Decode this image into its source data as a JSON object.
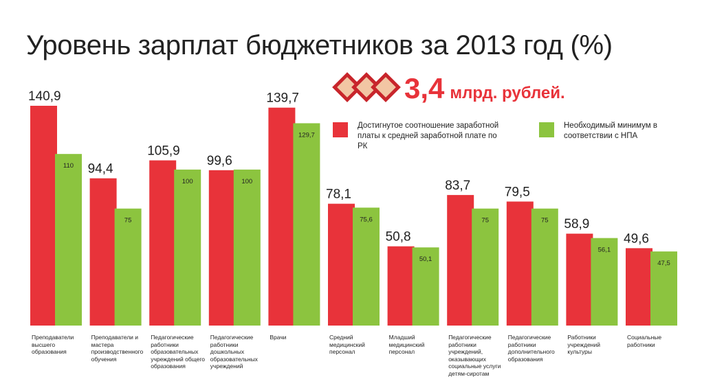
{
  "title": "Уровень зарплат бюджетников за 2013 год (%)",
  "highlight": {
    "amount": "3,4",
    "unit": "млрд. рублей."
  },
  "legend": [
    {
      "label": "Достигнутое соотношение заработной платы к средней заработной плате по РК",
      "color": "#e8333a"
    },
    {
      "label": "Необходимый минимум в соответствии с НПА",
      "color": "#8cc43f"
    }
  ],
  "colors": {
    "red": "#e8333a",
    "green": "#8cc43f",
    "logo_fill": "#f2c6a4",
    "logo_stroke": "#c8252b"
  },
  "chart_data": {
    "type": "bar",
    "title": "Уровень зарплат бюджетников за 2013 год (%)",
    "categories": [
      "Преподаватели высшего образования",
      "Преподаватели и мастера производственного обучения",
      "Педагогические работники образовательных учреждений общего образования",
      "Педагогические работники дошкольных образовательных учреждений",
      "Врачи",
      "Средний медицинский персонал",
      "Младший медицинский персонал",
      "Педагогические работники учреждений, оказывающих социальные услуги детям-сиротам",
      "Педагогические работники дополнительного образования",
      "Работники учреждений культуры",
      "Социальные работники"
    ],
    "series": [
      {
        "name": "Достигнутое соотношение заработной платы к средней заработной плате по РК",
        "values": [
          140.9,
          94.4,
          105.9,
          99.6,
          139.7,
          78.1,
          50.8,
          83.7,
          79.5,
          58.9,
          49.6
        ],
        "labels": [
          "140,9",
          "94,4",
          "105,9",
          "99,6",
          "139,7",
          "78,1",
          "50,8",
          "83,7",
          "79,5",
          "58,9",
          "49,6"
        ]
      },
      {
        "name": "Необходимый минимум в соответствии с НПА",
        "values": [
          110,
          75,
          100,
          100,
          129.7,
          75.6,
          50.1,
          75,
          75,
          56.1,
          47.5
        ],
        "labels": [
          "110",
          "75",
          "100",
          "100",
          "129,7",
          "75,6",
          "50,1",
          "75",
          "75",
          "56,1",
          "47,5"
        ]
      }
    ],
    "ylim": [
      0,
      160
    ],
    "grid": false,
    "legend_position": "top-right"
  }
}
